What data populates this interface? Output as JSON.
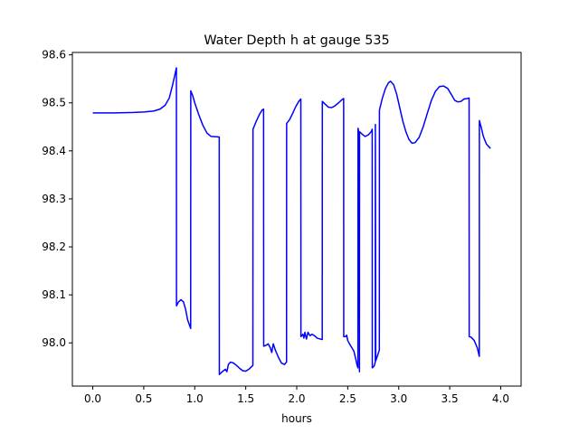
{
  "chart_data": {
    "type": "line",
    "title": "Water Depth h at gauge 535",
    "xlabel": "hours",
    "ylabel": "",
    "xlim": [
      -0.2,
      4.2
    ],
    "ylim": [
      97.91,
      98.605
    ],
    "xticks": [
      0.0,
      0.5,
      1.0,
      1.5,
      2.0,
      2.5,
      3.0,
      3.5,
      4.0
    ],
    "xtick_labels": [
      "0.0",
      "0.5",
      "1.0",
      "1.5",
      "2.0",
      "2.5",
      "3.0",
      "3.5",
      "4.0"
    ],
    "yticks": [
      98.0,
      98.1,
      98.2,
      98.3,
      98.4,
      98.5,
      98.6
    ],
    "ytick_labels": [
      "98.0",
      "98.1",
      "98.2",
      "98.3",
      "98.4",
      "98.5",
      "98.6"
    ],
    "grid": false,
    "legend": "none",
    "series": [
      {
        "color": "#0000ff",
        "points": [
          [
            0.0,
            98.479
          ],
          [
            0.2,
            98.479
          ],
          [
            0.4,
            98.48
          ],
          [
            0.5,
            98.481
          ],
          [
            0.6,
            98.483
          ],
          [
            0.66,
            98.487
          ],
          [
            0.71,
            98.495
          ],
          [
            0.75,
            98.51
          ],
          [
            0.78,
            98.535
          ],
          [
            0.805,
            98.558
          ],
          [
            0.82,
            98.573
          ],
          [
            0.821,
            98.077
          ],
          [
            0.84,
            98.085
          ],
          [
            0.865,
            98.09
          ],
          [
            0.89,
            98.085
          ],
          [
            0.91,
            98.07
          ],
          [
            0.93,
            98.048
          ],
          [
            0.96,
            98.03
          ],
          [
            0.961,
            98.525
          ],
          [
            0.98,
            98.515
          ],
          [
            1.0,
            98.5
          ],
          [
            1.04,
            98.475
          ],
          [
            1.08,
            98.453
          ],
          [
            1.12,
            98.437
          ],
          [
            1.16,
            98.43
          ],
          [
            1.24,
            98.429
          ],
          [
            1.241,
            97.934
          ],
          [
            1.27,
            97.94
          ],
          [
            1.3,
            97.945
          ],
          [
            1.315,
            97.94
          ],
          [
            1.33,
            97.955
          ],
          [
            1.35,
            97.96
          ],
          [
            1.38,
            97.958
          ],
          [
            1.41,
            97.953
          ],
          [
            1.44,
            97.947
          ],
          [
            1.47,
            97.942
          ],
          [
            1.5,
            97.941
          ],
          [
            1.53,
            97.945
          ],
          [
            1.57,
            97.953
          ],
          [
            1.571,
            98.445
          ],
          [
            1.6,
            98.46
          ],
          [
            1.63,
            98.474
          ],
          [
            1.66,
            98.485
          ],
          [
            1.675,
            98.487
          ],
          [
            1.676,
            97.993
          ],
          [
            1.7,
            97.995
          ],
          [
            1.72,
            97.998
          ],
          [
            1.74,
            97.99
          ],
          [
            1.755,
            97.98
          ],
          [
            1.77,
            97.998
          ],
          [
            1.79,
            97.985
          ],
          [
            1.82,
            97.97
          ],
          [
            1.85,
            97.958
          ],
          [
            1.88,
            97.955
          ],
          [
            1.9,
            97.96
          ],
          [
            1.901,
            98.457
          ],
          [
            1.93,
            98.465
          ],
          [
            1.96,
            98.478
          ],
          [
            1.99,
            98.492
          ],
          [
            2.02,
            98.503
          ],
          [
            2.04,
            98.508
          ],
          [
            2.041,
            98.013
          ],
          [
            2.06,
            98.018
          ],
          [
            2.07,
            98.01
          ],
          [
            2.08,
            98.022
          ],
          [
            2.095,
            98.008
          ],
          [
            2.11,
            98.022
          ],
          [
            2.13,
            98.015
          ],
          [
            2.15,
            98.018
          ],
          [
            2.18,
            98.014
          ],
          [
            2.2,
            98.01
          ],
          [
            2.23,
            98.008
          ],
          [
            2.25,
            98.007
          ],
          [
            2.251,
            98.503
          ],
          [
            2.28,
            98.497
          ],
          [
            2.31,
            98.491
          ],
          [
            2.34,
            98.49
          ],
          [
            2.37,
            98.493
          ],
          [
            2.41,
            98.5
          ],
          [
            2.44,
            98.506
          ],
          [
            2.46,
            98.509
          ],
          [
            2.461,
            98.013
          ],
          [
            2.48,
            98.013
          ],
          [
            2.49,
            98.016
          ],
          [
            2.5,
            98.005
          ],
          [
            2.52,
            97.997
          ],
          [
            2.54,
            97.99
          ],
          [
            2.56,
            97.983
          ],
          [
            2.58,
            97.965
          ],
          [
            2.59,
            97.955
          ],
          [
            2.6,
            97.948
          ],
          [
            2.601,
            98.447
          ],
          [
            2.61,
            98.438
          ],
          [
            2.615,
            97.94
          ],
          [
            2.616,
            98.44
          ],
          [
            2.64,
            98.435
          ],
          [
            2.67,
            98.43
          ],
          [
            2.7,
            98.433
          ],
          [
            2.73,
            98.44
          ],
          [
            2.74,
            98.445
          ],
          [
            2.741,
            97.948
          ],
          [
            2.76,
            97.952
          ],
          [
            2.77,
            97.96
          ],
          [
            2.771,
            98.455
          ],
          [
            2.775,
            97.963
          ],
          [
            2.79,
            97.972
          ],
          [
            2.81,
            97.985
          ],
          [
            2.811,
            98.485
          ],
          [
            2.84,
            98.51
          ],
          [
            2.87,
            98.53
          ],
          [
            2.9,
            98.542
          ],
          [
            2.92,
            98.545
          ],
          [
            2.95,
            98.538
          ],
          [
            2.98,
            98.518
          ],
          [
            3.01,
            98.49
          ],
          [
            3.04,
            98.462
          ],
          [
            3.07,
            98.44
          ],
          [
            3.1,
            98.424
          ],
          [
            3.13,
            98.416
          ],
          [
            3.16,
            98.417
          ],
          [
            3.2,
            98.428
          ],
          [
            3.24,
            98.45
          ],
          [
            3.28,
            98.478
          ],
          [
            3.32,
            98.505
          ],
          [
            3.36,
            98.524
          ],
          [
            3.4,
            98.534
          ],
          [
            3.44,
            98.535
          ],
          [
            3.48,
            98.53
          ],
          [
            3.52,
            98.516
          ],
          [
            3.55,
            98.505
          ],
          [
            3.58,
            98.502
          ],
          [
            3.61,
            98.503
          ],
          [
            3.64,
            98.508
          ],
          [
            3.67,
            98.509
          ],
          [
            3.69,
            98.51
          ],
          [
            3.691,
            98.013
          ],
          [
            3.71,
            98.012
          ],
          [
            3.74,
            98.005
          ],
          [
            3.77,
            97.99
          ],
          [
            3.79,
            97.972
          ],
          [
            3.791,
            98.463
          ],
          [
            3.81,
            98.448
          ],
          [
            3.83,
            98.43
          ],
          [
            3.86,
            98.414
          ],
          [
            3.9,
            98.405
          ]
        ]
      }
    ]
  }
}
